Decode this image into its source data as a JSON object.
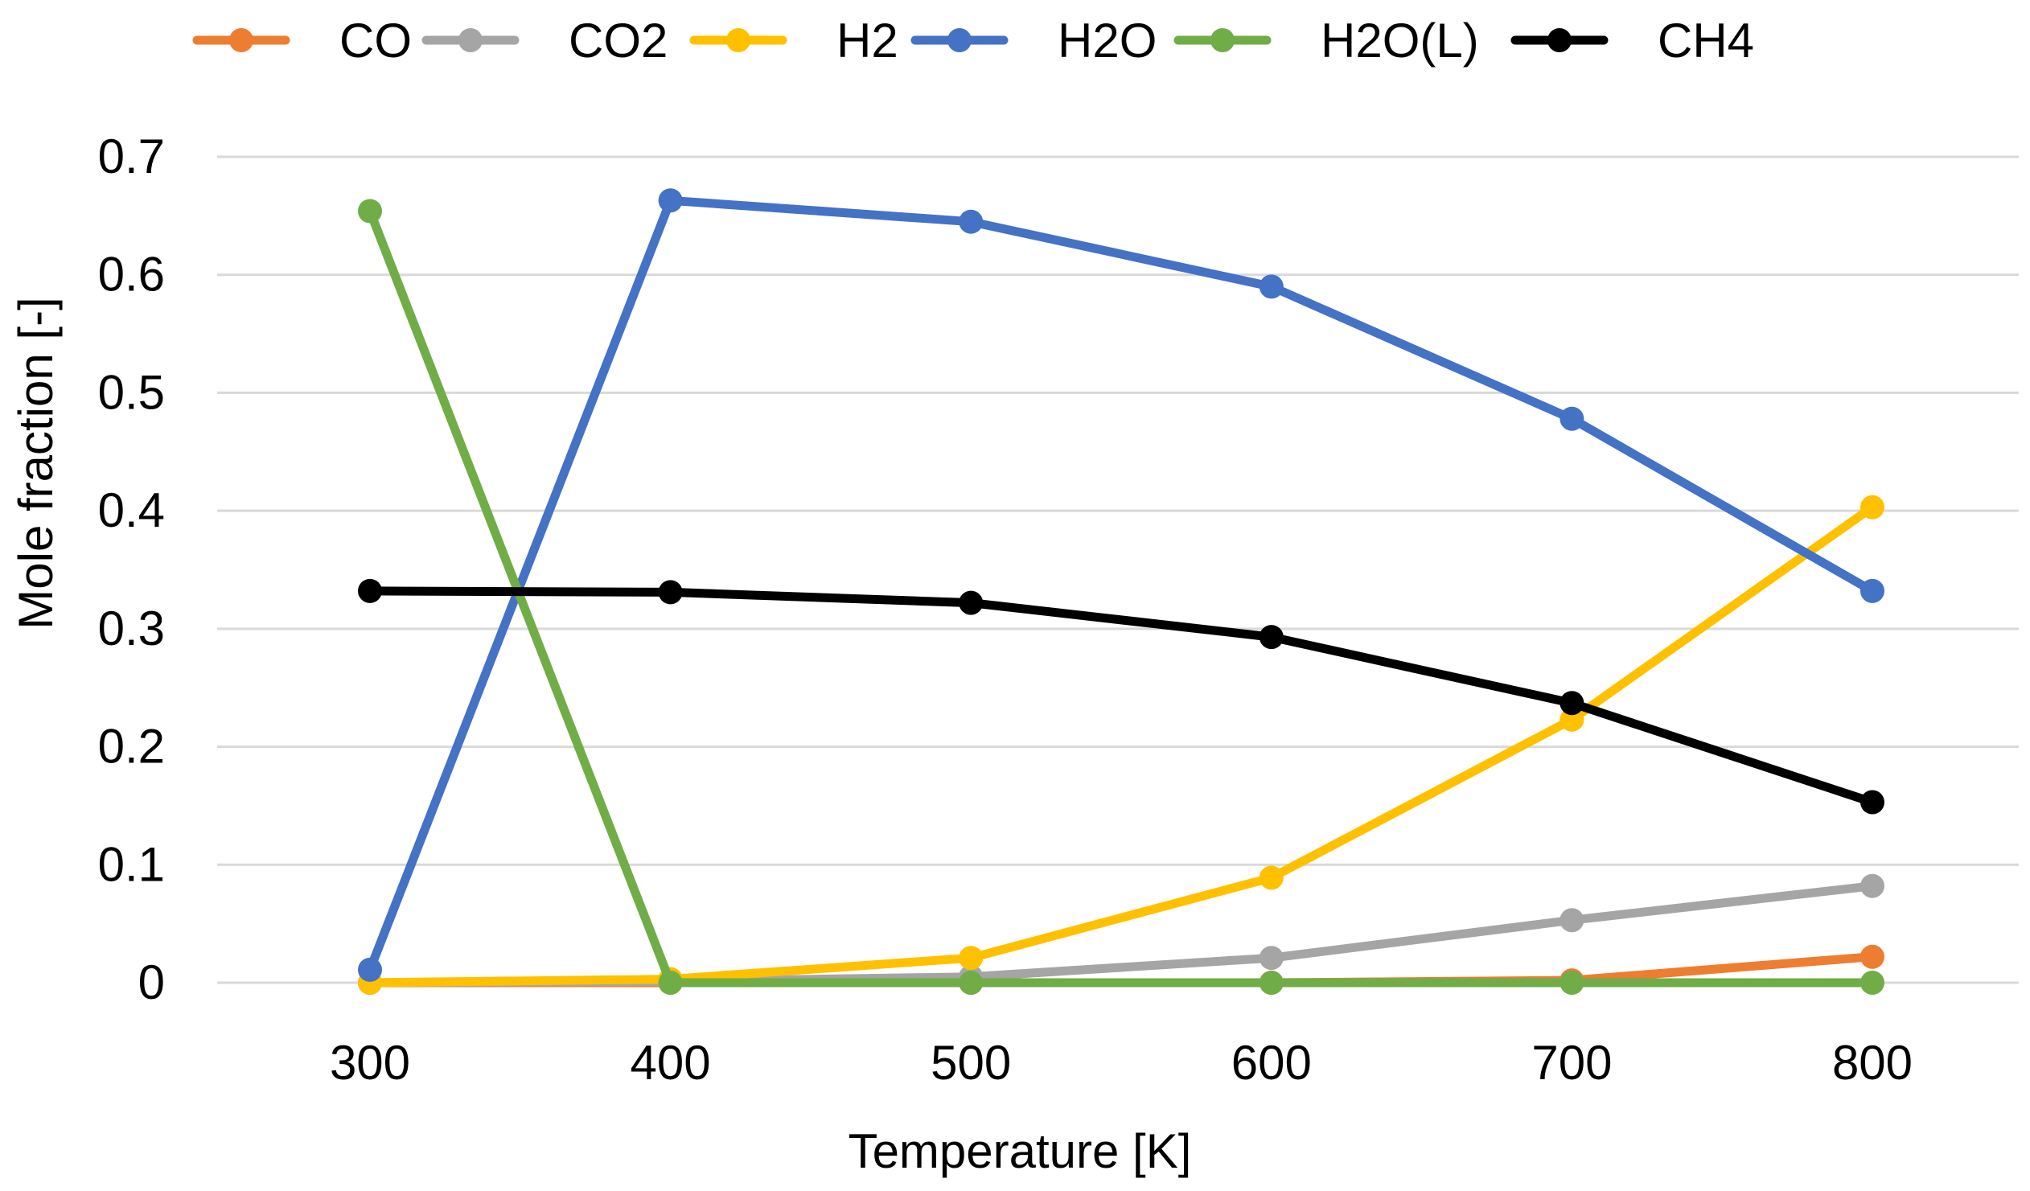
{
  "chart_data": {
    "type": "line",
    "title": "",
    "xlabel": "Temperature [K]",
    "ylabel": "Mole fraction [-]",
    "x": [
      300,
      400,
      500,
      600,
      700,
      800
    ],
    "x_tick_labels": [
      "300",
      "400",
      "500",
      "600",
      "700",
      "800"
    ],
    "ylim": [
      0,
      0.7
    ],
    "y_ticks": [
      0,
      0.1,
      0.2,
      0.3,
      0.4,
      0.5,
      0.6,
      0.7
    ],
    "y_tick_labels": [
      "0",
      "0.1",
      "0.2",
      "0.3",
      "0.4",
      "0.5",
      "0.6",
      "0.7"
    ],
    "grid": true,
    "legend_position": "top",
    "series": [
      {
        "name": "CO",
        "color": "#ED7D31",
        "values": [
          0,
          0,
          0,
          0,
          0.002,
          0.022
        ]
      },
      {
        "name": "CO2",
        "color": "#A5A5A5",
        "values": [
          0,
          0.001,
          0.005,
          0.021,
          0.053,
          0.082
        ]
      },
      {
        "name": "H2",
        "color": "#FFC000",
        "values": [
          0,
          0.003,
          0.021,
          0.089,
          0.223,
          0.403
        ]
      },
      {
        "name": "H2O",
        "color": "#4472C4",
        "values": [
          0.011,
          0.663,
          0.645,
          0.59,
          0.478,
          0.332
        ]
      },
      {
        "name": "H2O(L)",
        "color": "#70AD47",
        "values": [
          0.654,
          0,
          0,
          0,
          0,
          0
        ]
      },
      {
        "name": "CH4",
        "color": "#000000",
        "values": [
          0.332,
          0.331,
          0.322,
          0.293,
          0.237,
          0.153
        ]
      }
    ]
  }
}
